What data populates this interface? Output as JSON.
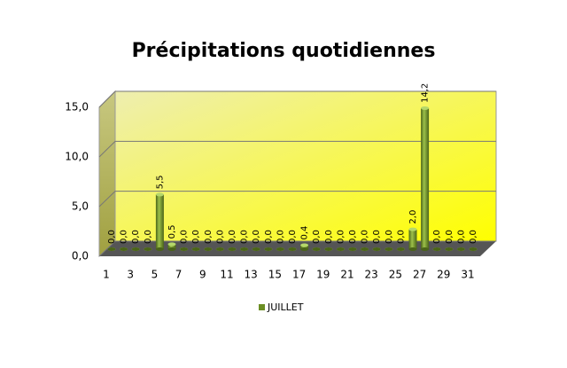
{
  "chart_data": {
    "type": "bar",
    "title": "Précipitations quotidiennes",
    "categories": [
      "1",
      null,
      "3",
      null,
      "5",
      null,
      "7",
      null,
      "9",
      null,
      "11",
      null,
      "13",
      null,
      "15",
      null,
      "17",
      null,
      "19",
      null,
      "21",
      null,
      "23",
      null,
      "25",
      null,
      "27",
      null,
      "29",
      null,
      "31"
    ],
    "series": [
      {
        "name": "JUILLET",
        "color": "#6b8e23",
        "values": [
          0,
          0,
          0,
          0,
          5.5,
          0.5,
          0,
          0,
          0,
          0,
          0,
          0,
          0,
          0,
          0,
          0,
          0.4,
          0,
          0,
          0,
          0,
          0,
          0,
          0,
          0,
          2,
          14.2,
          0,
          0,
          0,
          0
        ],
        "value_labels": [
          "0,0",
          "0,0",
          "0,0",
          "0,0",
          "5,5",
          "0,5",
          "0,0",
          "0,0",
          "0,0",
          "0,0",
          "0,0",
          "0,0",
          "0,0",
          "0,0",
          "0,0",
          "0,0",
          "0,4",
          "0,0",
          "0,0",
          "0,0",
          "0,0",
          "0,0",
          "0,0",
          "0,0",
          "0,0",
          "2,0",
          "14,2",
          "0,0",
          "0,0",
          "0,0",
          "0,0"
        ]
      }
    ],
    "ylim": [
      0,
      15
    ],
    "yticks": [
      {
        "value": 0,
        "label": "0,0"
      },
      {
        "value": 5,
        "label": "5,0"
      },
      {
        "value": 10,
        "label": "10,0"
      },
      {
        "value": 15,
        "label": "15,0"
      }
    ],
    "grid": true,
    "legend": "bottom"
  }
}
